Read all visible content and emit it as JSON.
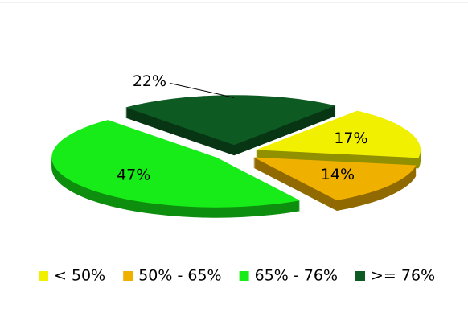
{
  "chart_data": {
    "type": "pie",
    "categories": [
      "< 50%",
      "50% - 65%",
      "65% - 76%",
      ">= 76%"
    ],
    "values": [
      17,
      14,
      47,
      22
    ],
    "value_labels": [
      "17%",
      "14%",
      "47%",
      "22%"
    ],
    "colors": [
      "#f0f000",
      "#f0b000",
      "#18ec18",
      "#0d5a22"
    ],
    "legend": "bottom"
  }
}
